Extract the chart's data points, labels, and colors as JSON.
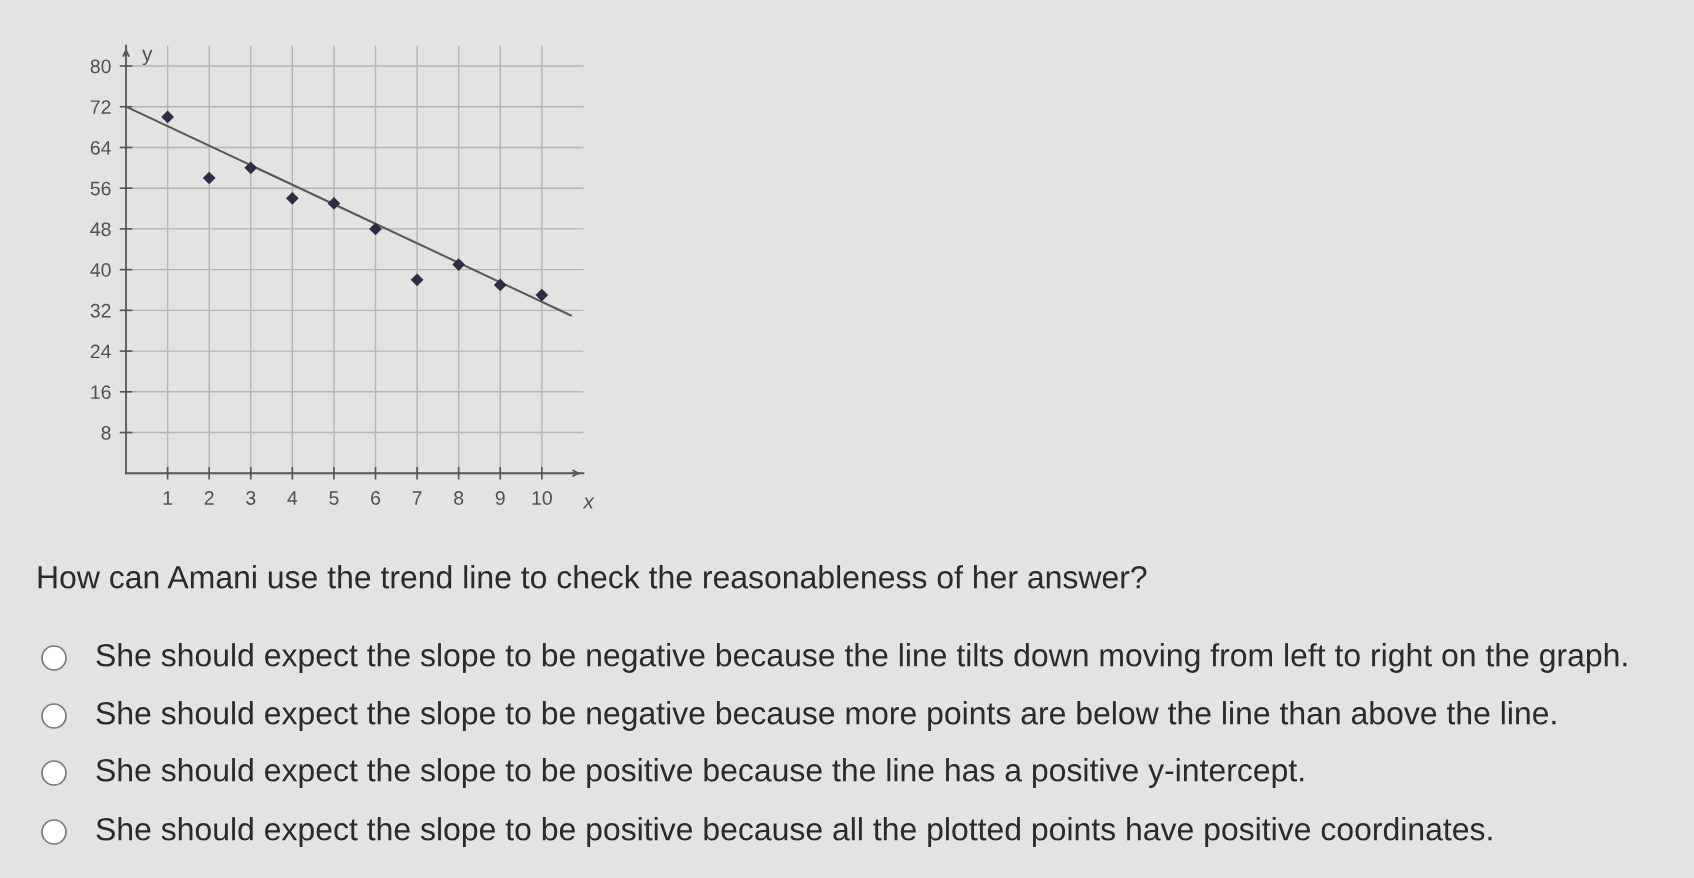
{
  "chart_data": {
    "type": "scatter",
    "xlabel": "x",
    "ylabel": "y",
    "xlim": [
      0,
      11
    ],
    "ylim": [
      0,
      84
    ],
    "xticks": [
      1,
      2,
      3,
      4,
      5,
      6,
      7,
      8,
      9,
      10
    ],
    "yticks": [
      8,
      16,
      24,
      32,
      40,
      48,
      56,
      64,
      72,
      80
    ],
    "grid": true,
    "marker": "diamond",
    "series": [
      {
        "color": "#2b2e45",
        "x": [
          1,
          2,
          3,
          4,
          5,
          6,
          7,
          8,
          9,
          10
        ],
        "values": [
          70,
          58,
          60,
          54,
          53,
          48,
          38,
          41,
          37,
          35
        ]
      },
      {
        "type": "line",
        "color": "#5a5a5a",
        "marker": "none",
        "x": [
          0,
          10.7
        ],
        "values": [
          72,
          31
        ]
      }
    ],
    "annotations": [
      "How can Amani use the trend line to check the reasonableness of her answer?",
      "She should expect the slope to be negative because the line tilts down moving from left to right on the graph.",
      "She should expect the slope to be negative because more points are below the line than above the line.",
      "She should expect the slope to be positive because the line has a positive y-intercept.",
      "She should expect the slope to be positive because all the plotted points have positive coordinates."
    ]
  }
}
